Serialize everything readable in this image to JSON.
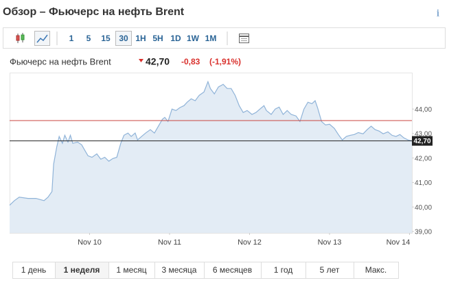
{
  "header": {
    "title": "Обзор – Фьючерс на нефть Brent",
    "info": "i"
  },
  "toolbar": {
    "intervals": [
      "1",
      "5",
      "15",
      "30",
      "1H",
      "5H",
      "1D",
      "1W",
      "1M"
    ],
    "selected": 3
  },
  "quote": {
    "name": "Фьючерс на нефть Brent",
    "price": "42,70",
    "change": "-0,83",
    "change_pct": "(-1,91%)"
  },
  "chart_data": {
    "type": "line",
    "x": [
      -1.0,
      -0.94,
      -0.88,
      -0.77,
      -0.67,
      -0.57,
      -0.52,
      -0.47,
      -0.45,
      -0.41,
      -0.38,
      -0.34,
      -0.31,
      -0.27,
      -0.24,
      -0.21,
      -0.15,
      -0.1,
      -0.05,
      -0.02,
      0.03,
      0.09,
      0.14,
      0.19,
      0.24,
      0.29,
      0.34,
      0.39,
      0.43,
      0.48,
      0.52,
      0.57,
      0.6,
      0.65,
      0.7,
      0.76,
      0.81,
      0.86,
      0.91,
      0.94,
      0.98,
      1.03,
      1.08,
      1.13,
      1.18,
      1.22,
      1.27,
      1.32,
      1.37,
      1.43,
      1.48,
      1.51,
      1.56,
      1.61,
      1.67,
      1.72,
      1.77,
      1.82,
      1.87,
      1.92,
      1.97,
      2.03,
      2.08,
      2.13,
      2.18,
      2.21,
      2.27,
      2.32,
      2.37,
      2.42,
      2.47,
      2.52,
      2.58,
      2.63,
      2.68,
      2.73,
      2.78,
      2.82,
      2.85,
      2.9,
      2.95,
      3.0,
      3.06,
      3.11,
      3.16,
      3.21,
      3.26,
      3.31,
      3.36,
      3.42,
      3.47,
      3.52,
      3.57,
      3.62,
      3.67,
      3.73,
      3.78,
      3.83,
      3.88,
      3.93,
      3.98,
      4.03
    ],
    "values": [
      40.07,
      40.26,
      40.4,
      40.35,
      40.35,
      40.26,
      40.4,
      40.63,
      41.75,
      42.46,
      42.88,
      42.6,
      42.93,
      42.65,
      42.93,
      42.6,
      42.65,
      42.54,
      42.26,
      42.09,
      42.03,
      42.17,
      41.95,
      42.03,
      41.87,
      41.98,
      42.03,
      42.6,
      42.93,
      43.02,
      42.88,
      43.02,
      42.74,
      42.88,
      43.02,
      43.16,
      43.02,
      43.3,
      43.58,
      43.66,
      43.49,
      44.0,
      43.94,
      44.06,
      44.14,
      44.28,
      44.42,
      44.34,
      44.56,
      44.7,
      45.12,
      44.84,
      44.62,
      44.9,
      45.01,
      44.84,
      44.84,
      44.56,
      44.14,
      43.86,
      43.94,
      43.78,
      43.86,
      44.0,
      44.14,
      43.94,
      43.78,
      44.0,
      44.08,
      43.78,
      43.94,
      43.78,
      43.72,
      43.49,
      44.0,
      44.28,
      44.22,
      44.34,
      44.06,
      43.49,
      43.35,
      43.38,
      43.21,
      42.96,
      42.74,
      42.88,
      42.93,
      42.96,
      43.04,
      42.99,
      43.16,
      43.3,
      43.16,
      43.1,
      42.99,
      43.07,
      42.93,
      42.88,
      42.96,
      42.82,
      42.74,
      42.7
    ],
    "color": "#8fb3d8",
    "fill_color": "#e3ecf5",
    "xlim": [
      -1.0,
      4.03
    ],
    "xticks": [
      {
        "value": 0,
        "label": "Nov 10"
      },
      {
        "value": 1,
        "label": "Nov 11"
      },
      {
        "value": 2,
        "label": "Nov 12"
      },
      {
        "value": 3,
        "label": "Nov 13"
      },
      {
        "value": 4,
        "label": "Nov 14"
      }
    ],
    "ylim": [
      38.94,
      45.46
    ],
    "yticks": [
      {
        "value": 39,
        "label": "39,00"
      },
      {
        "value": 40,
        "label": "40,00"
      },
      {
        "value": 41,
        "label": "41,00"
      },
      {
        "value": 42,
        "label": "42,00"
      },
      {
        "value": 43,
        "label": "43,00"
      },
      {
        "value": 44,
        "label": "44,00"
      }
    ],
    "reference_line": {
      "value": 43.53,
      "color": "#c9453f"
    },
    "last_value": {
      "value": 42.7,
      "label": "42,70"
    }
  },
  "ranges": {
    "labels": [
      "1 день",
      "1 неделя",
      "1 месяц",
      "3 месяца",
      "6 месяцев",
      "1 год",
      "5 лет",
      "Макс."
    ],
    "selected": 1
  }
}
